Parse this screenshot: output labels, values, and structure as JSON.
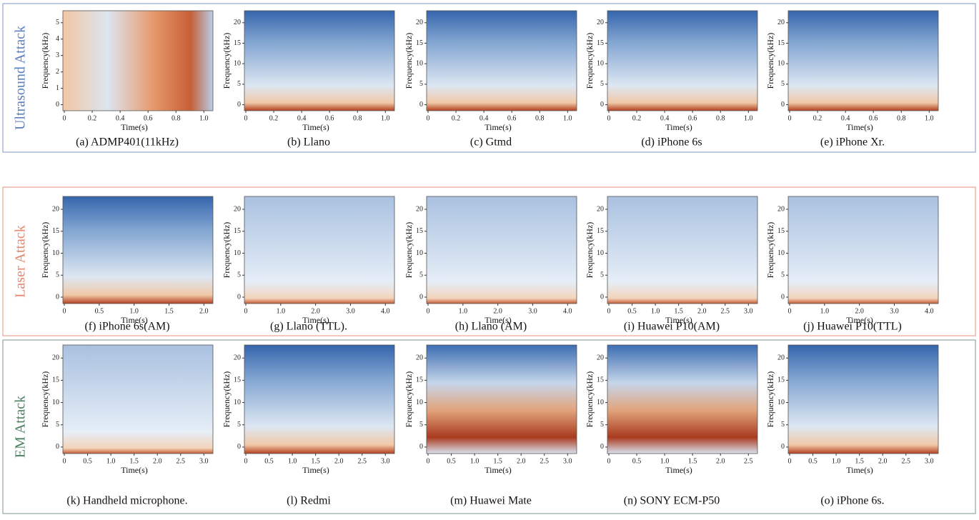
{
  "groups": [
    {
      "label": "Ultrasound Attack",
      "panels": [
        {
          "caption": "(a)  ADMP401(11kHz)",
          "xlabel": "Time(s)",
          "ylabel": "Frequency(kHz)",
          "xticks": [
            "0",
            "0.2",
            "0.4",
            "0.6",
            "0.8",
            "1.0"
          ],
          "yticks": [
            "0",
            "1",
            "2",
            "3",
            "4",
            "5"
          ]
        },
        {
          "caption": "(b)  Llano",
          "xlabel": "Time(s)",
          "ylabel": "Frequency(kHz)",
          "xticks": [
            "0",
            "0.2",
            "0.4",
            "0.6",
            "0.8",
            "1.0"
          ],
          "yticks": [
            "0",
            "5",
            "10",
            "15",
            "20"
          ]
        },
        {
          "caption": "(c)  Gtmd",
          "xlabel": "Time(s)",
          "ylabel": "Frequency(kHz)",
          "xticks": [
            "0",
            "0.2",
            "0.4",
            "0.6",
            "0.8",
            "1.0"
          ],
          "yticks": [
            "0",
            "5",
            "10",
            "15",
            "20"
          ]
        },
        {
          "caption": "(d)  iPhone 6s",
          "xlabel": "Time(s)",
          "ylabel": "Frequency(kHz)",
          "xticks": [
            "0",
            "0.2",
            "0.4",
            "0.6",
            "0.8",
            "1.0"
          ],
          "yticks": [
            "0",
            "5",
            "10",
            "15",
            "20"
          ]
        },
        {
          "caption": "(e)  iPhone Xr.",
          "xlabel": "Time(s)",
          "ylabel": "Frequency(kHz)",
          "xticks": [
            "0",
            "0.2",
            "0.4",
            "0.6",
            "0.8",
            "1.0"
          ],
          "yticks": [
            "0",
            "5",
            "10",
            "15",
            "20"
          ]
        }
      ]
    },
    {
      "label": "Laser Attack",
      "panels": [
        {
          "caption": "(f)  iPhone 6s(AM)",
          "xlabel": "Time(s)",
          "ylabel": "Frequency(kHz)",
          "xticks": [
            "0",
            "0.5",
            "1.0",
            "1.5",
            "2.0"
          ],
          "yticks": [
            "0",
            "5",
            "10",
            "15",
            "20"
          ]
        },
        {
          "caption": "(g)  Llano (TTL).",
          "xlabel": "Time(s)",
          "ylabel": "Frequency(kHz)",
          "xticks": [
            "0",
            "1.0",
            "2.0",
            "3.0",
            "4.0"
          ],
          "yticks": [
            "0",
            "5",
            "10",
            "15",
            "20"
          ]
        },
        {
          "caption": "(h)  Llano (AM)",
          "xlabel": "Time(s)",
          "ylabel": "Frequency(kHz)",
          "xticks": [
            "0",
            "1.0",
            "2.0",
            "3.0",
            "4.0"
          ],
          "yticks": [
            "0",
            "5",
            "10",
            "15",
            "20"
          ]
        },
        {
          "caption": "(i)  Huawei P10(AM)",
          "xlabel": "Time(s)",
          "ylabel": "Frequency(kHz)",
          "xticks": [
            "0",
            "0.5",
            "1.0",
            "1.5",
            "2.0",
            "2.5",
            "3.0"
          ],
          "yticks": [
            "0",
            "5",
            "10",
            "15",
            "20"
          ]
        },
        {
          "caption": "(j)  Huawei P10(TTL)",
          "xlabel": "Time(s)",
          "ylabel": "Frequency(kHz)",
          "xticks": [
            "0",
            "1.0",
            "2.0",
            "3.0",
            "4.0"
          ],
          "yticks": [
            "0",
            "5",
            "10",
            "15",
            "20"
          ]
        }
      ]
    },
    {
      "label": "EM Attack",
      "panels": [
        {
          "caption": "(k)  Handheld microphone.",
          "xlabel": "Time(s)",
          "ylabel": "Frequency(kHz)",
          "xticks": [
            "0",
            "0.5",
            "1.0",
            "1.5",
            "2.0",
            "2.5",
            "3.0"
          ],
          "yticks": [
            "0",
            "5",
            "10",
            "15",
            "20"
          ]
        },
        {
          "caption": "(l)  Redmi",
          "xlabel": "Time(s)",
          "ylabel": "Frequency(kHz)",
          "xticks": [
            "0",
            "0.5",
            "1.0",
            "1.5",
            "2.0",
            "2.5",
            "3.0"
          ],
          "yticks": [
            "0",
            "5",
            "10",
            "15",
            "20"
          ]
        },
        {
          "caption": "(m)  Huawei Mate",
          "xlabel": "Time(s)",
          "ylabel": "Frequency(kHz)",
          "xticks": [
            "0",
            "0.5",
            "1.0",
            "1.5",
            "2.0",
            "2.5",
            "3.0"
          ],
          "yticks": [
            "0",
            "5",
            "10",
            "15",
            "20"
          ]
        },
        {
          "caption": "(n)  SONY ECM-P50",
          "xlabel": "Time(s)",
          "ylabel": "Frequency(kHz)",
          "xticks": [
            "0",
            "0.5",
            "1.0",
            "1.5",
            "2.0",
            "2.5"
          ],
          "yticks": [
            "0",
            "5",
            "10",
            "15",
            "20"
          ]
        },
        {
          "caption": "(o)  iPhone 6s.",
          "xlabel": "Time(s)",
          "ylabel": "Frequency(kHz)",
          "xticks": [
            "0",
            "0.5",
            "1.0",
            "1.5",
            "2.0",
            "2.5",
            "3.0"
          ],
          "yticks": [
            "0",
            "5",
            "10",
            "15",
            "20"
          ]
        }
      ]
    }
  ]
}
